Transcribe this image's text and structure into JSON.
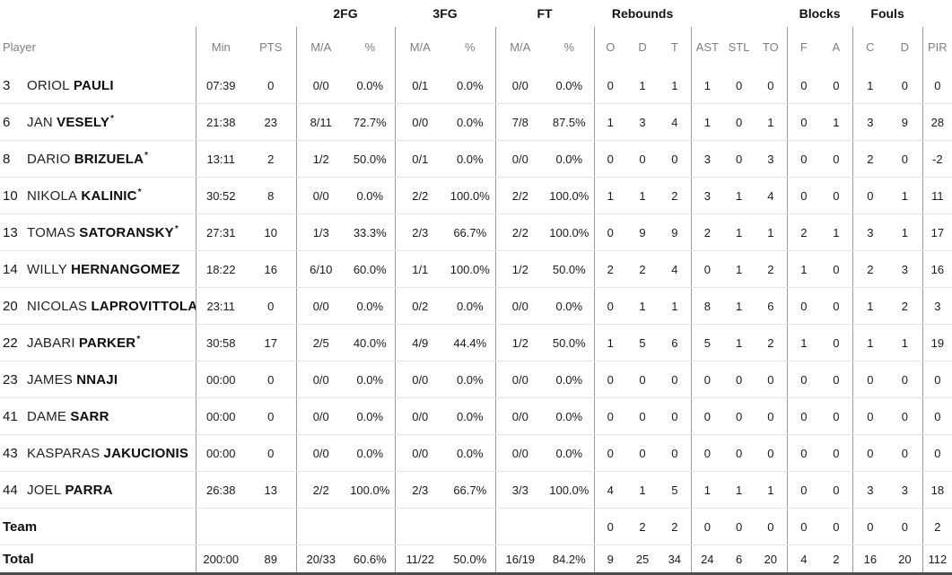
{
  "meta": {
    "starter_mark": "*"
  },
  "colors": {
    "vertical_line": "#9b9b9b",
    "row_line": "#e4e4e4",
    "header_text": "#7e7e7e",
    "text": "#161616",
    "bottom_border": "#4d4d4d"
  },
  "header": {
    "groups": [
      {
        "label": "",
        "span": 1
      },
      {
        "label": "",
        "span": 2
      },
      {
        "label": "2FG",
        "span": 2
      },
      {
        "label": "3FG",
        "span": 2
      },
      {
        "label": "FT",
        "span": 2
      },
      {
        "label": "Rebounds",
        "span": 3
      },
      {
        "label": "",
        "span": 3
      },
      {
        "label": "Blocks",
        "span": 2
      },
      {
        "label": "Fouls",
        "span": 2
      },
      {
        "label": "",
        "span": 1
      }
    ],
    "columns": [
      "Player",
      "Min",
      "PTS",
      "M/A",
      "%",
      "M/A",
      "%",
      "M/A",
      "%",
      "O",
      "D",
      "T",
      "AST",
      "STL",
      "TO",
      "F",
      "A",
      "C",
      "D",
      "PIR"
    ]
  },
  "players": [
    {
      "num": "3",
      "first": "ORIOL",
      "last": "PAULI",
      "starter": false,
      "min": "07:39",
      "pts": "0",
      "fg2_ma": "0/0",
      "fg2_pct": "0.0%",
      "fg3_ma": "0/1",
      "fg3_pct": "0.0%",
      "ft_ma": "0/0",
      "ft_pct": "0.0%",
      "reb_o": "0",
      "reb_d": "1",
      "reb_t": "1",
      "ast": "1",
      "stl": "0",
      "to": "0",
      "blk_f": "0",
      "blk_a": "0",
      "foul_c": "1",
      "foul_d": "0",
      "pir": "0"
    },
    {
      "num": "6",
      "first": "JAN",
      "last": "VESELY",
      "starter": true,
      "min": "21:38",
      "pts": "23",
      "fg2_ma": "8/11",
      "fg2_pct": "72.7%",
      "fg3_ma": "0/0",
      "fg3_pct": "0.0%",
      "ft_ma": "7/8",
      "ft_pct": "87.5%",
      "reb_o": "1",
      "reb_d": "3",
      "reb_t": "4",
      "ast": "1",
      "stl": "0",
      "to": "1",
      "blk_f": "0",
      "blk_a": "1",
      "foul_c": "3",
      "foul_d": "9",
      "pir": "28"
    },
    {
      "num": "8",
      "first": "DARIO",
      "last": "BRIZUELA",
      "starter": true,
      "min": "13:11",
      "pts": "2",
      "fg2_ma": "1/2",
      "fg2_pct": "50.0%",
      "fg3_ma": "0/1",
      "fg3_pct": "0.0%",
      "ft_ma": "0/0",
      "ft_pct": "0.0%",
      "reb_o": "0",
      "reb_d": "0",
      "reb_t": "0",
      "ast": "3",
      "stl": "0",
      "to": "3",
      "blk_f": "0",
      "blk_a": "0",
      "foul_c": "2",
      "foul_d": "0",
      "pir": "-2"
    },
    {
      "num": "10",
      "first": "NIKOLA",
      "last": "KALINIC",
      "starter": true,
      "min": "30:52",
      "pts": "8",
      "fg2_ma": "0/0",
      "fg2_pct": "0.0%",
      "fg3_ma": "2/2",
      "fg3_pct": "100.0%",
      "ft_ma": "2/2",
      "ft_pct": "100.0%",
      "reb_o": "1",
      "reb_d": "1",
      "reb_t": "2",
      "ast": "3",
      "stl": "1",
      "to": "4",
      "blk_f": "0",
      "blk_a": "0",
      "foul_c": "0",
      "foul_d": "1",
      "pir": "11"
    },
    {
      "num": "13",
      "first": "TOMAS",
      "last": "SATORANSKY",
      "starter": true,
      "min": "27:31",
      "pts": "10",
      "fg2_ma": "1/3",
      "fg2_pct": "33.3%",
      "fg3_ma": "2/3",
      "fg3_pct": "66.7%",
      "ft_ma": "2/2",
      "ft_pct": "100.0%",
      "reb_o": "0",
      "reb_d": "9",
      "reb_t": "9",
      "ast": "2",
      "stl": "1",
      "to": "1",
      "blk_f": "2",
      "blk_a": "1",
      "foul_c": "3",
      "foul_d": "1",
      "pir": "17"
    },
    {
      "num": "14",
      "first": "WILLY",
      "last": "HERNANGOMEZ",
      "starter": false,
      "min": "18:22",
      "pts": "16",
      "fg2_ma": "6/10",
      "fg2_pct": "60.0%",
      "fg3_ma": "1/1",
      "fg3_pct": "100.0%",
      "ft_ma": "1/2",
      "ft_pct": "50.0%",
      "reb_o": "2",
      "reb_d": "2",
      "reb_t": "4",
      "ast": "0",
      "stl": "1",
      "to": "2",
      "blk_f": "1",
      "blk_a": "0",
      "foul_c": "2",
      "foul_d": "3",
      "pir": "16"
    },
    {
      "num": "20",
      "first": "NICOLAS",
      "last": "LAPROVITTOLA",
      "starter": false,
      "min": "23:11",
      "pts": "0",
      "fg2_ma": "0/0",
      "fg2_pct": "0.0%",
      "fg3_ma": "0/2",
      "fg3_pct": "0.0%",
      "ft_ma": "0/0",
      "ft_pct": "0.0%",
      "reb_o": "0",
      "reb_d": "1",
      "reb_t": "1",
      "ast": "8",
      "stl": "1",
      "to": "6",
      "blk_f": "0",
      "blk_a": "0",
      "foul_c": "1",
      "foul_d": "2",
      "pir": "3"
    },
    {
      "num": "22",
      "first": "JABARI",
      "last": "PARKER",
      "starter": true,
      "min": "30:58",
      "pts": "17",
      "fg2_ma": "2/5",
      "fg2_pct": "40.0%",
      "fg3_ma": "4/9",
      "fg3_pct": "44.4%",
      "ft_ma": "1/2",
      "ft_pct": "50.0%",
      "reb_o": "1",
      "reb_d": "5",
      "reb_t": "6",
      "ast": "5",
      "stl": "1",
      "to": "2",
      "blk_f": "1",
      "blk_a": "0",
      "foul_c": "1",
      "foul_d": "1",
      "pir": "19"
    },
    {
      "num": "23",
      "first": "JAMES",
      "last": "NNAJI",
      "starter": false,
      "min": "00:00",
      "pts": "0",
      "fg2_ma": "0/0",
      "fg2_pct": "0.0%",
      "fg3_ma": "0/0",
      "fg3_pct": "0.0%",
      "ft_ma": "0/0",
      "ft_pct": "0.0%",
      "reb_o": "0",
      "reb_d": "0",
      "reb_t": "0",
      "ast": "0",
      "stl": "0",
      "to": "0",
      "blk_f": "0",
      "blk_a": "0",
      "foul_c": "0",
      "foul_d": "0",
      "pir": "0"
    },
    {
      "num": "41",
      "first": "DAME",
      "last": "SARR",
      "starter": false,
      "min": "00:00",
      "pts": "0",
      "fg2_ma": "0/0",
      "fg2_pct": "0.0%",
      "fg3_ma": "0/0",
      "fg3_pct": "0.0%",
      "ft_ma": "0/0",
      "ft_pct": "0.0%",
      "reb_o": "0",
      "reb_d": "0",
      "reb_t": "0",
      "ast": "0",
      "stl": "0",
      "to": "0",
      "blk_f": "0",
      "blk_a": "0",
      "foul_c": "0",
      "foul_d": "0",
      "pir": "0"
    },
    {
      "num": "43",
      "first": "KASPARAS",
      "last": "JAKUCIONIS",
      "starter": false,
      "min": "00:00",
      "pts": "0",
      "fg2_ma": "0/0",
      "fg2_pct": "0.0%",
      "fg3_ma": "0/0",
      "fg3_pct": "0.0%",
      "ft_ma": "0/0",
      "ft_pct": "0.0%",
      "reb_o": "0",
      "reb_d": "0",
      "reb_t": "0",
      "ast": "0",
      "stl": "0",
      "to": "0",
      "blk_f": "0",
      "blk_a": "0",
      "foul_c": "0",
      "foul_d": "0",
      "pir": "0"
    },
    {
      "num": "44",
      "first": "JOEL",
      "last": "PARRA",
      "starter": false,
      "min": "26:38",
      "pts": "13",
      "fg2_ma": "2/2",
      "fg2_pct": "100.0%",
      "fg3_ma": "2/3",
      "fg3_pct": "66.7%",
      "ft_ma": "3/3",
      "ft_pct": "100.0%",
      "reb_o": "4",
      "reb_d": "1",
      "reb_t": "5",
      "ast": "1",
      "stl": "1",
      "to": "1",
      "blk_f": "0",
      "blk_a": "0",
      "foul_c": "3",
      "foul_d": "3",
      "pir": "18"
    }
  ],
  "team": {
    "label": "Team",
    "min": "",
    "pts": "",
    "fg2_ma": "",
    "fg2_pct": "",
    "fg3_ma": "",
    "fg3_pct": "",
    "ft_ma": "",
    "ft_pct": "",
    "reb_o": "0",
    "reb_d": "2",
    "reb_t": "2",
    "ast": "0",
    "stl": "0",
    "to": "0",
    "blk_f": "0",
    "blk_a": "0",
    "foul_c": "0",
    "foul_d": "0",
    "pir": "2"
  },
  "total": {
    "label": "Total",
    "min": "200:00",
    "pts": "89",
    "fg2_ma": "20/33",
    "fg2_pct": "60.6%",
    "fg3_ma": "11/22",
    "fg3_pct": "50.0%",
    "ft_ma": "16/19",
    "ft_pct": "84.2%",
    "reb_o": "9",
    "reb_d": "25",
    "reb_t": "34",
    "ast": "24",
    "stl": "6",
    "to": "20",
    "blk_f": "4",
    "blk_a": "2",
    "foul_c": "16",
    "foul_d": "20",
    "pir": "112"
  }
}
